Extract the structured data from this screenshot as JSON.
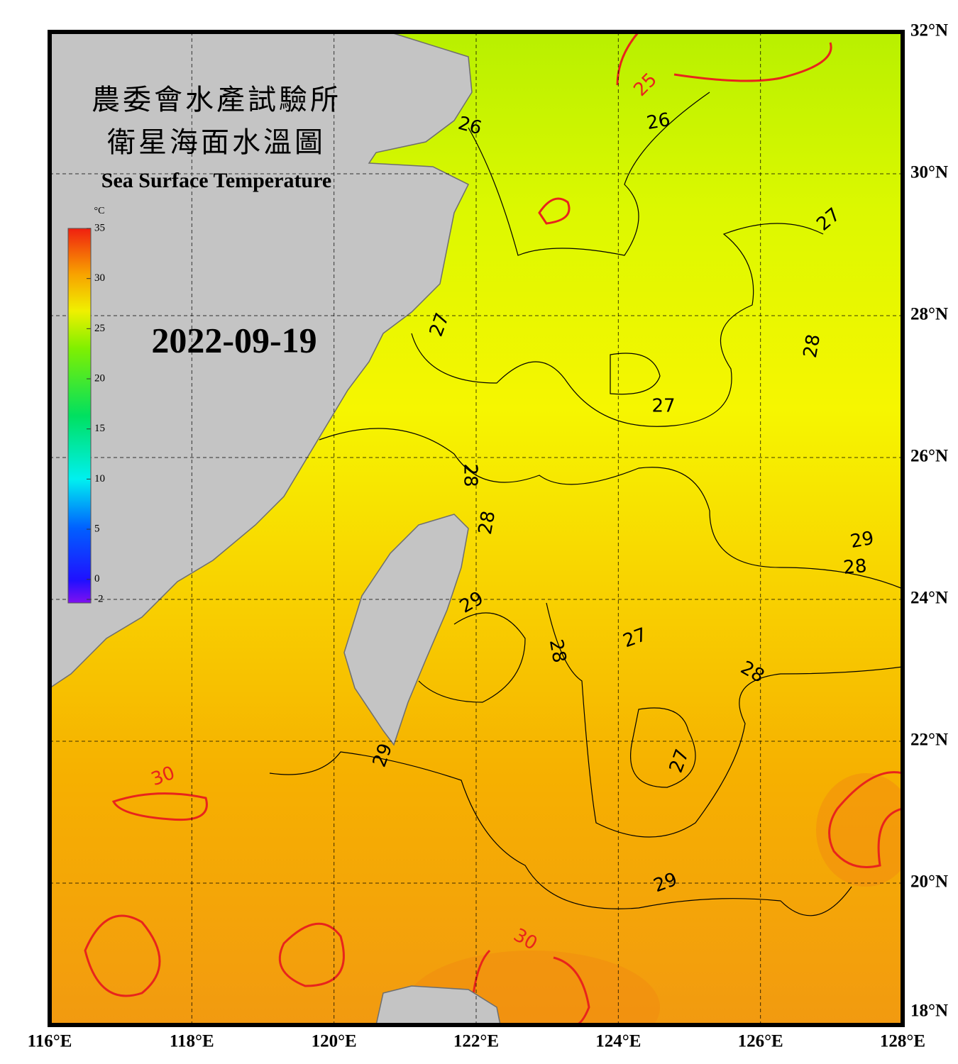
{
  "chart_data": {
    "type": "map",
    "title_lines": [
      "農委會水產試驗所",
      "衛星海面水溫圖"
    ],
    "subtitle": "Sea Surface Temperature",
    "date": "2022-09-19",
    "xlim": [
      116,
      128
    ],
    "ylim": [
      18,
      32
    ],
    "xticks": [
      {
        "value": 116,
        "label": "116°E"
      },
      {
        "value": 118,
        "label": "118°E"
      },
      {
        "value": 120,
        "label": "120°E"
      },
      {
        "value": 122,
        "label": "122°E"
      },
      {
        "value": 124,
        "label": "124°E"
      },
      {
        "value": 126,
        "label": "126°E"
      },
      {
        "value": 128,
        "label": "128°E"
      }
    ],
    "yticks": [
      {
        "value": 18,
        "label": "18°N"
      },
      {
        "value": 20,
        "label": "20°N"
      },
      {
        "value": 22,
        "label": "22°N"
      },
      {
        "value": 24,
        "label": "24°N"
      },
      {
        "value": 26,
        "label": "26°N"
      },
      {
        "value": 28,
        "label": "28°N"
      },
      {
        "value": 30,
        "label": "30°N"
      },
      {
        "value": 32,
        "label": "32°N"
      }
    ],
    "grid": true,
    "colorbar": {
      "unit": "°C",
      "lim": [
        -2,
        35
      ],
      "ticks": [
        35,
        30,
        25,
        20,
        15,
        10,
        5,
        0,
        -2
      ]
    },
    "contour_labels": [
      26,
      25,
      26,
      27,
      27,
      28,
      27,
      28,
      28,
      29,
      28,
      29,
      27,
      28,
      28,
      27,
      29,
      30,
      30,
      29
    ],
    "highlight_color": "#e8241c",
    "highlight_levels": [
      25,
      30
    ]
  }
}
